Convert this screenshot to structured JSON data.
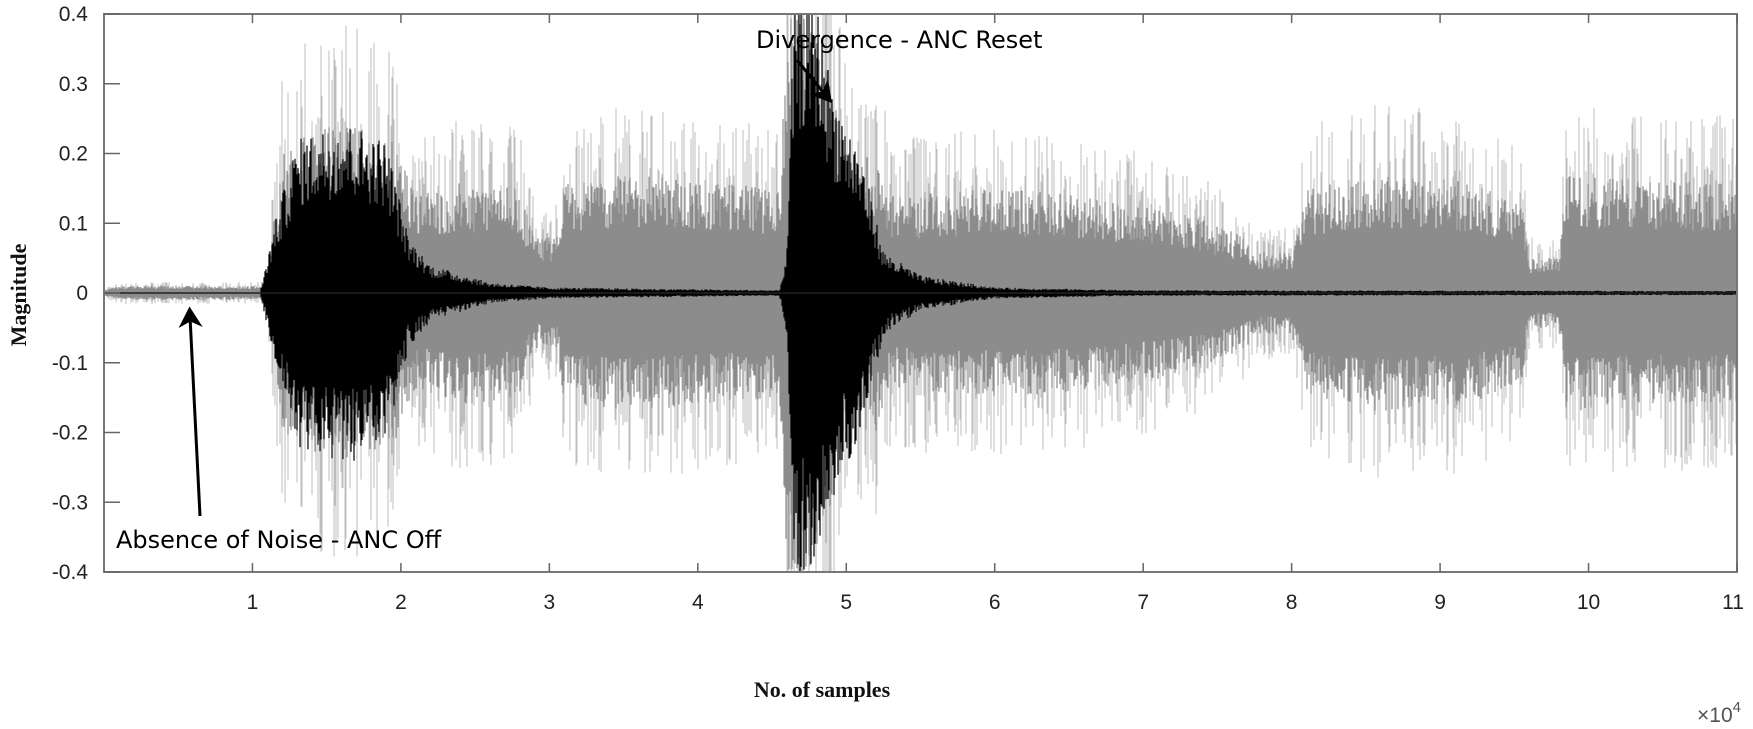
{
  "chart_data": {
    "type": "line",
    "title": "",
    "xlabel": "No. of samples",
    "ylabel": "Magnitude",
    "x_multiplier": "×10",
    "x_multiplier_exp": "4",
    "xlim": [
      0,
      110000
    ],
    "ylim": [
      -0.4,
      0.4
    ],
    "xticks": [
      10000,
      20000,
      30000,
      40000,
      50000,
      60000,
      70000,
      80000,
      90000,
      100000,
      110000
    ],
    "xtick_labels": [
      "1",
      "2",
      "3",
      "4",
      "5",
      "6",
      "7",
      "8",
      "9",
      "10",
      "11"
    ],
    "yticks": [
      0.4,
      0.3,
      0.2,
      0.1,
      0,
      -0.1,
      -0.2,
      -0.3,
      -0.4
    ],
    "ytick_labels": [
      "0.4",
      "0.3",
      "0.2",
      "0.1",
      "0",
      "-0.1",
      "-0.2",
      "-0.3",
      "-0.4"
    ],
    "grid": false,
    "series": [
      {
        "color": "#8c8c8c",
        "spike_color": "#bdbdbd",
        "envelope": [
          [
            0,
            0.004
          ],
          [
            1000,
            0.01
          ],
          [
            10500,
            0.01
          ],
          [
            11000,
            0.03
          ],
          [
            12000,
            0.2
          ],
          [
            14000,
            0.24
          ],
          [
            17000,
            0.24
          ],
          [
            19500,
            0.22
          ],
          [
            21000,
            0.14
          ],
          [
            24000,
            0.16
          ],
          [
            28000,
            0.15
          ],
          [
            29000,
            0.08
          ],
          [
            30500,
            0.08
          ],
          [
            31000,
            0.16
          ],
          [
            36000,
            0.17
          ],
          [
            40000,
            0.16
          ],
          [
            45500,
            0.15
          ],
          [
            46000,
            0.4
          ],
          [
            48000,
            0.4
          ],
          [
            50000,
            0.2
          ],
          [
            52000,
            0.2
          ],
          [
            53000,
            0.14
          ],
          [
            60000,
            0.15
          ],
          [
            66000,
            0.14
          ],
          [
            72000,
            0.12
          ],
          [
            76000,
            0.09
          ],
          [
            78000,
            0.06
          ],
          [
            80000,
            0.06
          ],
          [
            81000,
            0.15
          ],
          [
            86000,
            0.17
          ],
          [
            92000,
            0.16
          ],
          [
            95500,
            0.13
          ],
          [
            96000,
            0.05
          ],
          [
            98000,
            0.05
          ],
          [
            98500,
            0.17
          ],
          [
            104000,
            0.16
          ],
          [
            110000,
            0.16
          ]
        ]
      },
      {
        "color": "#000000",
        "envelope": [
          [
            0,
            0
          ],
          [
            10500,
            0
          ],
          [
            11500,
            0.1
          ],
          [
            13000,
            0.22
          ],
          [
            16000,
            0.25
          ],
          [
            19000,
            0.22
          ],
          [
            20500,
            0.08
          ],
          [
            22000,
            0.04
          ],
          [
            26000,
            0.015
          ],
          [
            30000,
            0.008
          ],
          [
            45500,
            0.004
          ],
          [
            46000,
            0.06
          ],
          [
            46500,
            0.42
          ],
          [
            48000,
            0.42
          ],
          [
            49000,
            0.3
          ],
          [
            51000,
            0.2
          ],
          [
            52500,
            0.06
          ],
          [
            55000,
            0.025
          ],
          [
            60000,
            0.008
          ],
          [
            70000,
            0.004
          ],
          [
            110000,
            0.003
          ]
        ]
      }
    ],
    "annotations": [
      {
        "text": "Divergence - ANC Reset",
        "target": [
          48500,
          0.27
        ]
      },
      {
        "text": "Absence of Noise - ANC Off",
        "target": [
          5500,
          -0.015
        ]
      }
    ]
  }
}
